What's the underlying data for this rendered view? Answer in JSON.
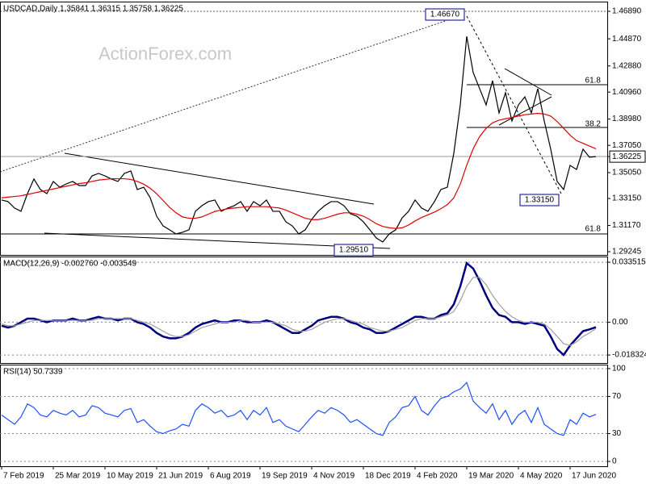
{
  "watermark": "ActionForex.com",
  "chart_data": [
    {
      "type": "line",
      "label": "USDCAD,Daily  1.35841 1.36315 1.35758 1.36225",
      "ylim": [
        1.2901,
        1.476
      ],
      "yticks": [
        {
          "value": 1.4689,
          "label": "1.46890"
        },
        {
          "value": 1.4487,
          "label": "1.44870"
        },
        {
          "value": 1.4288,
          "label": "1.42880"
        },
        {
          "value": 1.4096,
          "label": "1.40960"
        },
        {
          "value": 1.3898,
          "label": "1.38980"
        },
        {
          "value": 1.3705,
          "label": "1.37050"
        },
        {
          "value": 1.36225,
          "label": "1.36225"
        },
        {
          "value": 1.3505,
          "label": "1.35050"
        },
        {
          "value": 1.3315,
          "label": "1.33150"
        },
        {
          "value": 1.3117,
          "label": "1.31170"
        },
        {
          "value": 1.29245,
          "label": "1.29245"
        }
      ],
      "grid": false,
      "annotations": [
        "1.46670",
        "1.33150",
        "1.29510",
        "61.8",
        "38.2",
        "61.8"
      ],
      "series": [
        {
          "name": "USDCAD",
          "color": "#000000",
          "values": [
            1.3304,
            1.3292,
            1.3245,
            1.3221,
            1.3351,
            1.3458,
            1.3381,
            1.3351,
            1.344,
            1.3398,
            1.3422,
            1.344,
            1.341,
            1.341,
            1.3481,
            1.3499,
            1.3481,
            1.3458,
            1.344,
            1.3499,
            1.3517,
            1.3381,
            1.3398,
            1.3321,
            1.3185,
            1.3114,
            1.3085,
            1.3055,
            1.3067,
            1.3085,
            1.3221,
            1.3262,
            1.3292,
            1.3304,
            1.3221,
            1.3245,
            1.3262,
            1.3292,
            1.3221,
            1.3292,
            1.3262,
            1.3304,
            1.3221,
            1.3221,
            1.3144,
            1.3114,
            1.3055,
            1.3085,
            1.3162,
            1.3221,
            1.3262,
            1.3292,
            1.3292,
            1.3262,
            1.3203,
            1.3185,
            1.3144,
            1.3085,
            1.3025,
            1.2996,
            1.3055,
            1.3085,
            1.3173,
            1.3221,
            1.3304,
            1.3245,
            1.3221,
            1.3292,
            1.3381,
            1.3398,
            1.3647,
            1.4002,
            1.4505,
            1.4239,
            1.4121,
            1.4002,
            1.418,
            1.3943,
            1.4091,
            1.3884,
            1.4002,
            1.4061,
            1.3943,
            1.4121,
            1.3884,
            1.3677,
            1.344,
            1.3381,
            1.3558,
            1.3528,
            1.3677,
            1.3618,
            1.36225
          ]
        },
        {
          "name": "MA",
          "color": "#e00000",
          "values": [
            1.332,
            1.3325,
            1.333,
            1.3335,
            1.3345,
            1.3355,
            1.3365,
            1.3375,
            1.3385,
            1.3395,
            1.3405,
            1.3415,
            1.3425,
            1.343,
            1.344,
            1.345,
            1.3455,
            1.346,
            1.346,
            1.346,
            1.3455,
            1.344,
            1.342,
            1.339,
            1.335,
            1.33,
            1.325,
            1.321,
            1.318,
            1.317,
            1.317,
            1.318,
            1.32,
            1.322,
            1.323,
            1.324,
            1.3245,
            1.325,
            1.3255,
            1.3255,
            1.3255,
            1.3255,
            1.325,
            1.3245,
            1.323,
            1.321,
            1.319,
            1.317,
            1.316,
            1.316,
            1.317,
            1.3185,
            1.32,
            1.321,
            1.321,
            1.32,
            1.3185,
            1.316,
            1.313,
            1.311,
            1.31,
            1.3095,
            1.31,
            1.312,
            1.315,
            1.3175,
            1.3195,
            1.3215,
            1.324,
            1.327,
            1.332,
            1.342,
            1.356,
            1.368,
            1.377,
            1.383,
            1.387,
            1.389,
            1.39,
            1.391,
            1.392,
            1.393,
            1.3935,
            1.394,
            1.3935,
            1.392,
            1.388,
            1.383,
            1.378,
            1.374,
            1.372,
            1.37,
            1.368
          ]
        }
      ]
    },
    {
      "type": "line",
      "label": "MACD(12,26,9) -0.002760 -0.003549",
      "ylim": [
        -0.0228,
        0.0367
      ],
      "yticks": [
        0.033515,
        {
          "value": 0,
          "label": "0.00"
        },
        -0.018324
      ],
      "grid": true,
      "series": [
        {
          "name": "MACD",
          "color": "#000080",
          "values": [
            -0.002,
            -0.003,
            -0.002,
            0,
            0.002,
            0.002,
            0.001,
            0,
            0.001,
            0.001,
            0.001,
            0.002,
            0.001,
            0.001,
            0.002,
            0.003,
            0.002,
            0.002,
            0.001,
            0.002,
            0.002,
            0,
            -0.001,
            -0.003,
            -0.006,
            -0.008,
            -0.009,
            -0.009,
            -0.008,
            -0.006,
            -0.003,
            -0.001,
            0,
            0.001,
            0,
            0,
            0.001,
            0.001,
            0,
            0,
            0,
            0.001,
            0,
            -0.002,
            -0.004,
            -0.006,
            -0.006,
            -0.004,
            -0.002,
            0.001,
            0.002,
            0.003,
            0.003,
            0.002,
            0,
            -0.001,
            -0.003,
            -0.004,
            -0.006,
            -0.006,
            -0.005,
            -0.003,
            -0.001,
            0.001,
            0.003,
            0.003,
            0.002,
            0.002,
            0.004,
            0.005,
            0.01,
            0.02,
            0.033,
            0.03,
            0.023,
            0.015,
            0.008,
            0.004,
            0.003,
            0,
            0,
            -0.001,
            0,
            -0.001,
            -0.002,
            -0.008,
            -0.015,
            -0.0183,
            -0.013,
            -0.009,
            -0.005,
            -0.004,
            -0.00276
          ]
        },
        {
          "name": "Signal",
          "color": "#a0a0a0",
          "values": [
            -0.001,
            -0.002,
            -0.002,
            -0.001,
            0,
            0.001,
            0.001,
            0.001,
            0.001,
            0.001,
            0.001,
            0.001,
            0.001,
            0.001,
            0.001,
            0.002,
            0.002,
            0.002,
            0.002,
            0.002,
            0.002,
            0.001,
            0,
            -0.001,
            -0.003,
            -0.005,
            -0.007,
            -0.008,
            -0.008,
            -0.007,
            -0.005,
            -0.003,
            -0.002,
            -0.001,
            0,
            0,
            0,
            0.001,
            0.001,
            0,
            0,
            0,
            0,
            -0.001,
            -0.002,
            -0.004,
            -0.005,
            -0.005,
            -0.004,
            -0.002,
            0,
            0.001,
            0.002,
            0.002,
            0.001,
            0,
            -0.001,
            -0.003,
            -0.004,
            -0.005,
            -0.005,
            -0.004,
            -0.003,
            -0.001,
            0.001,
            0.002,
            0.002,
            0.002,
            0.003,
            0.004,
            0.006,
            0.012,
            0.02,
            0.025,
            0.025,
            0.021,
            0.015,
            0.01,
            0.006,
            0.003,
            0.001,
            0,
            0,
            0,
            -0.001,
            -0.004,
            -0.008,
            -0.012,
            -0.013,
            -0.011,
            -0.008,
            -0.006,
            -0.003549
          ]
        }
      ]
    },
    {
      "type": "line",
      "label": "RSI(14) 50.7339",
      "ylim": [
        -5.2,
        104.3
      ],
      "yticks": [
        100,
        70,
        30,
        0
      ],
      "grid": true,
      "categories": [
        "7 Feb 2019",
        null,
        null,
        null,
        null,
        null,
        null,
        null,
        "25 Mar 2019",
        null,
        null,
        null,
        null,
        null,
        null,
        null,
        "10 May 2019",
        null,
        null,
        null,
        null,
        null,
        null,
        null,
        "21 Jun 2019",
        null,
        null,
        null,
        null,
        null,
        null,
        null,
        "6 Aug 2019",
        null,
        null,
        null,
        null,
        null,
        null,
        null,
        "19 Sep 2019",
        null,
        null,
        null,
        null,
        null,
        null,
        null,
        "4 Nov 2019",
        null,
        null,
        null,
        null,
        null,
        null,
        null,
        "18 Dec 2019",
        null,
        null,
        null,
        null,
        null,
        null,
        null,
        "4 Feb 2020",
        null,
        null,
        null,
        null,
        null,
        null,
        null,
        "19 Mar 2020",
        null,
        null,
        null,
        null,
        null,
        null,
        null,
        "4 May 2020",
        null,
        null,
        null,
        null,
        null,
        null,
        null,
        "17 Jun 2020",
        null,
        null,
        null,
        null
      ],
      "series": [
        {
          "name": "RSI",
          "color": "#1e50ff",
          "values": [
            50,
            45,
            40,
            48,
            62,
            58,
            50,
            48,
            55,
            52,
            50,
            55,
            48,
            50,
            60,
            58,
            52,
            50,
            48,
            55,
            57,
            42,
            45,
            38,
            32,
            30,
            33,
            35,
            40,
            38,
            55,
            62,
            58,
            52,
            55,
            48,
            50,
            55,
            45,
            55,
            50,
            58,
            42,
            45,
            38,
            35,
            32,
            40,
            48,
            55,
            52,
            58,
            55,
            50,
            42,
            45,
            40,
            35,
            30,
            28,
            42,
            48,
            58,
            60,
            70,
            55,
            50,
            60,
            68,
            70,
            75,
            78,
            85,
            65,
            58,
            52,
            62,
            45,
            55,
            40,
            50,
            55,
            42,
            58,
            40,
            35,
            30,
            28,
            45,
            40,
            52,
            48,
            50.7339
          ]
        }
      ]
    }
  ]
}
